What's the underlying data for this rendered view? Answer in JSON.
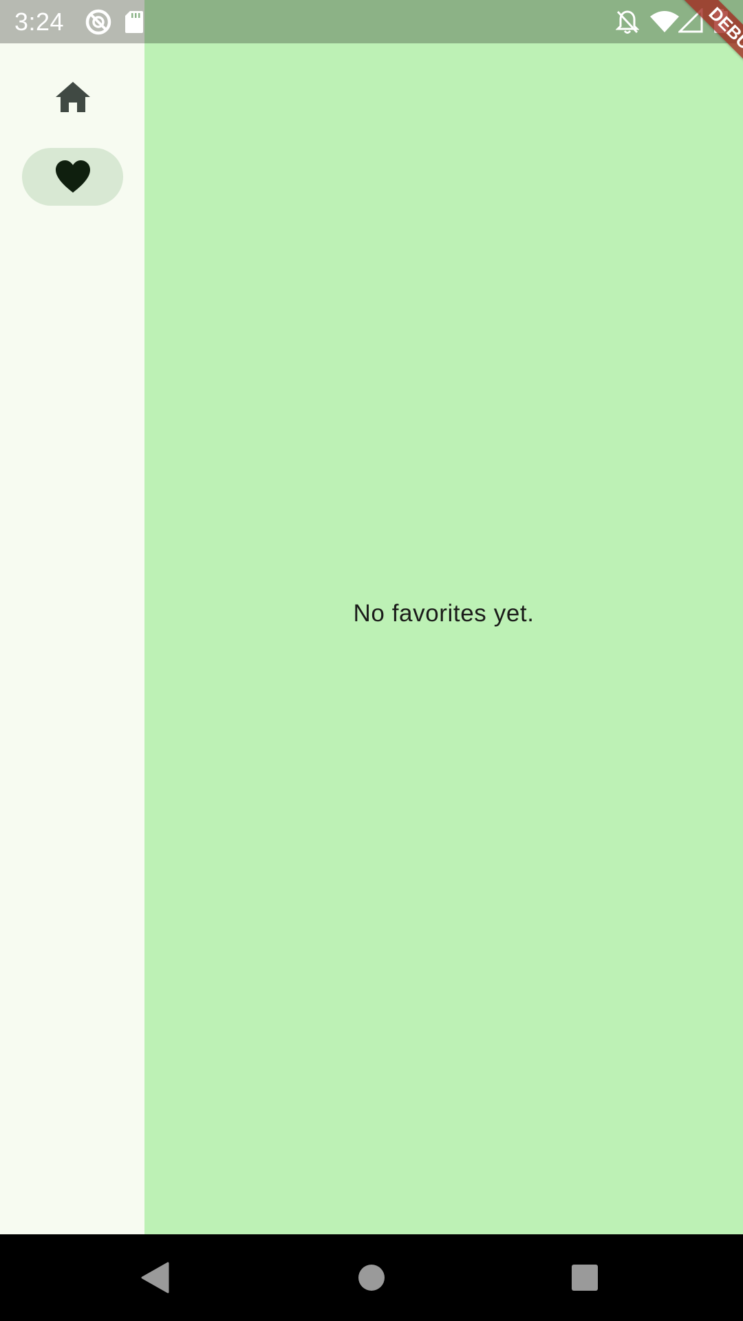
{
  "status_bar": {
    "time": "3:24",
    "left_icons": [
      "sync-circle-icon",
      "sd-card-icon"
    ],
    "right_icons": [
      "notifications-off-icon",
      "wifi-icon",
      "cell-signal-icon",
      "battery-icon"
    ]
  },
  "debug_banner": {
    "label": "DEBUG",
    "color": "#a0281e"
  },
  "nav_rail": {
    "items": [
      {
        "label": "Home",
        "icon": "home-icon",
        "selected": false
      },
      {
        "label": "Favorites",
        "icon": "heart-icon",
        "selected": true
      }
    ]
  },
  "main": {
    "empty_message": "No favorites yet.",
    "background": "#bdf1b5"
  },
  "system_nav": {
    "buttons": [
      "back-icon",
      "home-circle-icon",
      "recents-icon"
    ]
  },
  "colors": {
    "rail_background": "#f7fbf1",
    "rail_indicator": "#d8e8d3",
    "content_background": "#bdf1b5",
    "icon_dark": "#0f1f0e"
  }
}
